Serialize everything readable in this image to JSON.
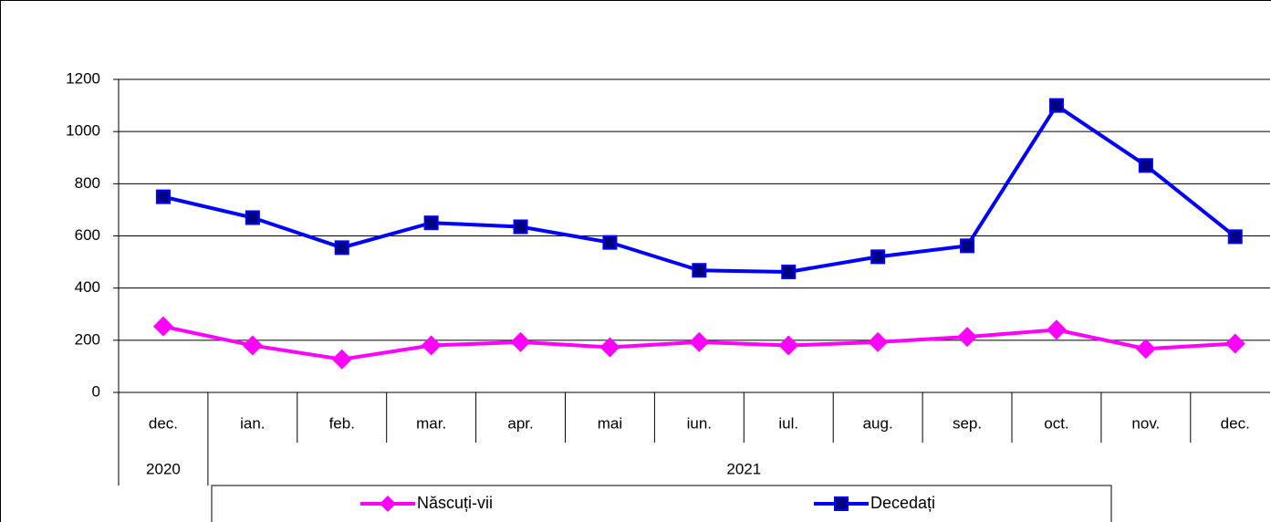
{
  "chart_data": {
    "type": "line",
    "categories": [
      "dec.",
      "ian.",
      "feb.",
      "mar.",
      "apr.",
      "mai",
      "iun.",
      "iul.",
      "aug.",
      "sep.",
      "oct.",
      "nov.",
      "dec."
    ],
    "year_labels": [
      "2020",
      "2021"
    ],
    "series": [
      {
        "name": "Născuți-vii",
        "color": "#ff00ff",
        "marker": "diamond",
        "values": [
          253,
          180,
          127,
          180,
          193,
          173,
          193,
          180,
          193,
          213,
          240,
          167,
          187
        ]
      },
      {
        "name": "Decedați",
        "color": "#0000ff",
        "marker": "square",
        "values": [
          750,
          670,
          555,
          650,
          635,
          575,
          468,
          462,
          520,
          562,
          1100,
          870,
          597
        ]
      }
    ],
    "ylim": [
      0,
      1200
    ],
    "yticks": [
      0,
      200,
      400,
      600,
      800,
      1000,
      1200
    ],
    "grid": true
  }
}
